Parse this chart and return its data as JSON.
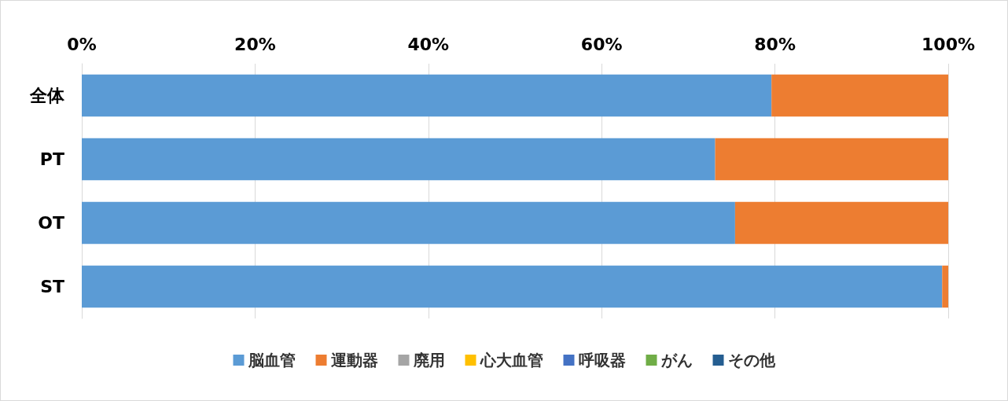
{
  "chart_data": {
    "type": "bar",
    "orientation": "horizontal",
    "stacked": true,
    "categories": [
      "全体",
      "PT",
      "OT",
      "ST"
    ],
    "series": [
      {
        "name": "脳血管",
        "color": "#5b9bd5",
        "values": [
          79.6,
          73.1,
          75.4,
          99.3
        ]
      },
      {
        "name": "運動器",
        "color": "#ed7d31",
        "values": [
          20.4,
          26.9,
          24.6,
          0.7
        ]
      },
      {
        "name": "廃用",
        "color": "#a5a5a5",
        "values": [
          0,
          0,
          0,
          0
        ]
      },
      {
        "name": "心大血管",
        "color": "#ffc000",
        "values": [
          0,
          0,
          0,
          0
        ]
      },
      {
        "name": "呼吸器",
        "color": "#4472c4",
        "values": [
          0,
          0,
          0,
          0
        ]
      },
      {
        "name": "がん",
        "color": "#70ad47",
        "values": [
          0,
          0,
          0,
          0
        ]
      },
      {
        "name": "その他",
        "color": "#255e91",
        "values": [
          0,
          0,
          0,
          0
        ]
      }
    ],
    "xlim": [
      0,
      100
    ],
    "xticks": [
      {
        "value": 0,
        "label": "0%"
      },
      {
        "value": 20,
        "label": "20%"
      },
      {
        "value": 40,
        "label": "40%"
      },
      {
        "value": 60,
        "label": "60%"
      },
      {
        "value": 80,
        "label": "80%"
      },
      {
        "value": 100,
        "label": "100%"
      }
    ],
    "grid": "x",
    "legend": "bottom"
  }
}
